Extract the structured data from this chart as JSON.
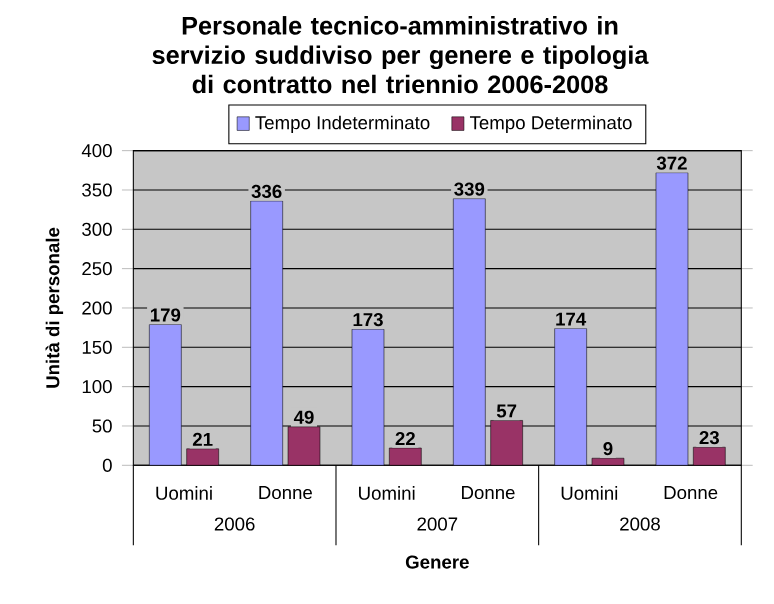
{
  "chart_data": {
    "type": "bar",
    "title": "Personale tecnico-amministrativo in servizio suddiviso per genere e tipologia di contratto nel triennio 2006-2008",
    "xlabel": "Genere",
    "ylabel": "Unità di personale",
    "categories": [
      "Uomini",
      "Donne",
      "Uomini",
      "Donne",
      "Uomini",
      "Donne"
    ],
    "series": [
      {
        "name": "Tempo Indeterminato",
        "color": "#9999ff",
        "values": [
          179,
          336,
          173,
          339,
          174,
          372
        ]
      },
      {
        "name": "Tempo Determinato",
        "color": "#993366",
        "values": [
          21,
          49,
          22,
          57,
          9,
          23
        ]
      }
    ],
    "annotations": [
      "2006",
      "2007",
      "2008"
    ],
    "ylim": [
      0,
      400
    ],
    "yticks": [
      0,
      50,
      100,
      150,
      200,
      250,
      300,
      350,
      400
    ],
    "grid": "y",
    "legend": "top",
    "data_labels": true
  }
}
